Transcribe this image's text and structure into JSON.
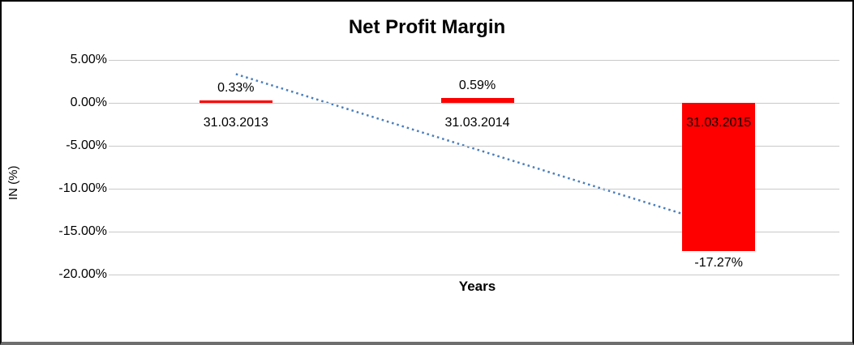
{
  "chart_data": {
    "type": "bar",
    "title": "Net Profit Margin",
    "xlabel": "Years",
    "ylabel": "IN (%)",
    "categories": [
      "31.03.2013",
      "31.03.2014",
      "31.03.2015"
    ],
    "values": [
      0.33,
      0.59,
      -17.27
    ],
    "data_labels": [
      "0.33%",
      "0.59%",
      "-17.27%"
    ],
    "ylim": [
      -20,
      5
    ],
    "ytick_step": 5,
    "ytick_labels": [
      "5.00%",
      "0.00%",
      "-5.00%",
      "-10.00%",
      "-15.00%",
      "-20.00%"
    ],
    "grid": true,
    "legend": "none",
    "bar_color": "#ff0000",
    "gridline_color": "#c9c9c9",
    "trendline": {
      "type": "linear",
      "style": "dotted",
      "color": "#4a7ebb",
      "start_value": 3.35,
      "end_value": -14.25
    }
  }
}
